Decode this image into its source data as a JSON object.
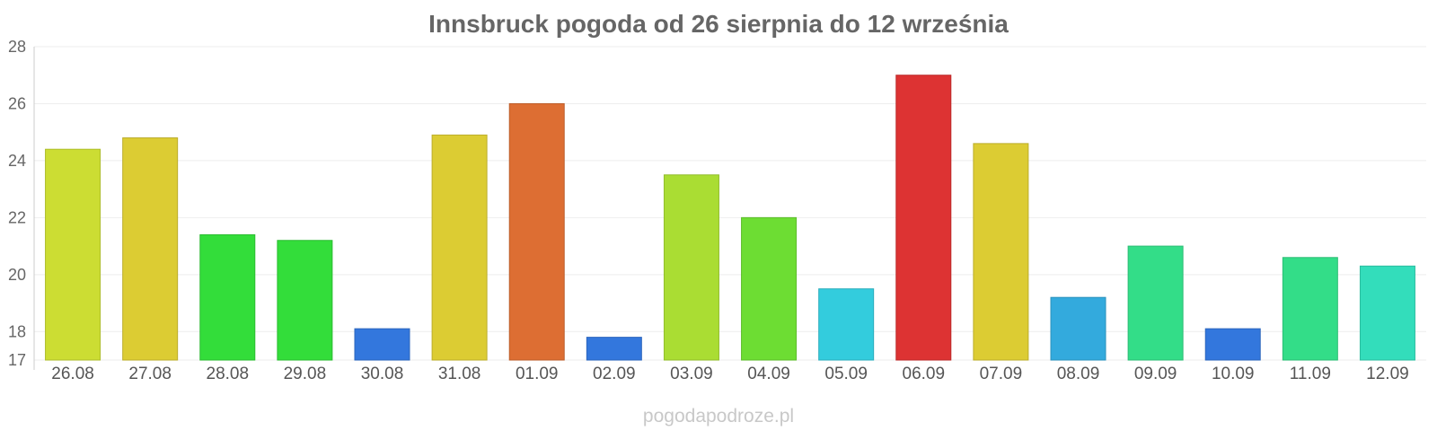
{
  "chart_data": {
    "type": "bar",
    "title": "Innsbruck pogoda od 26 sierpnia do 12 września",
    "xlabel": "",
    "ylabel": "",
    "ylim": [
      17,
      28
    ],
    "yticks": [
      17,
      18,
      20,
      22,
      24,
      26,
      28
    ],
    "grid": true,
    "categories": [
      "26.08",
      "27.08",
      "28.08",
      "29.08",
      "30.08",
      "31.08",
      "01.09",
      "02.09",
      "03.09",
      "04.09",
      "05.09",
      "06.09",
      "07.09",
      "08.09",
      "09.09",
      "10.09",
      "11.09",
      "12.09"
    ],
    "values": [
      24.4,
      24.8,
      21.4,
      21.2,
      18.1,
      24.9,
      26.0,
      17.8,
      23.5,
      22.0,
      19.5,
      27.0,
      24.6,
      19.2,
      21.0,
      18.1,
      20.6,
      20.3
    ],
    "colors": [
      "#ccdd33",
      "#dccc33",
      "#33dd3a",
      "#33dd3a",
      "#3377dd",
      "#dccc33",
      "#dd6e33",
      "#3377dd",
      "#aadd33",
      "#6ddd33",
      "#33ccdd",
      "#dd3333",
      "#dccc33",
      "#33aadd",
      "#33dd88",
      "#3377dd",
      "#33dd88",
      "#33ddbb"
    ]
  },
  "watermark": "pogodapodroze.pl"
}
